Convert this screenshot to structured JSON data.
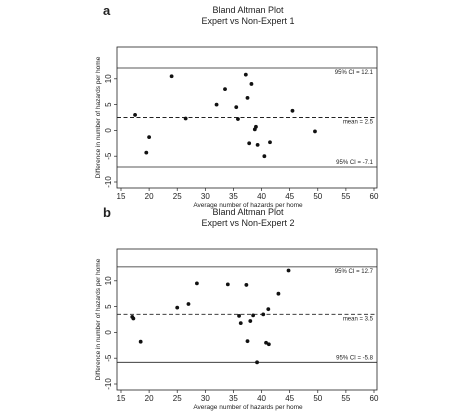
{
  "chart_data": [
    {
      "type": "scatter",
      "panel": "a",
      "title": "Bland Altman Plot",
      "subtitle": "Expert vs Non-Expert 1",
      "xlabel": "Average number of hazards per home",
      "ylabel": "Difference in number of hazards per home",
      "xlim": [
        15,
        60
      ],
      "ylim": [
        -10,
        15
      ],
      "xticks": [
        "15",
        "20",
        "25",
        "30",
        "35",
        "40",
        "45",
        "50",
        "55",
        "60"
      ],
      "yticks": [
        "-10",
        "-5",
        "0",
        "5",
        "10"
      ],
      "grid": false,
      "mean": 2.5,
      "upper_ci": 12.1,
      "lower_ci": -7.1,
      "mean_label": "mean = 2.5",
      "upper_label": "95% CI = 12.1",
      "lower_label": "95% CI = -7.1",
      "points": [
        {
          "x": 17.5,
          "y": 3.0
        },
        {
          "x": 19.5,
          "y": -4.3
        },
        {
          "x": 20.0,
          "y": -1.3
        },
        {
          "x": 24.0,
          "y": 10.5
        },
        {
          "x": 26.5,
          "y": 2.3
        },
        {
          "x": 32.0,
          "y": 5.0
        },
        {
          "x": 33.5,
          "y": 8.0
        },
        {
          "x": 35.5,
          "y": 4.5
        },
        {
          "x": 35.8,
          "y": 2.2
        },
        {
          "x": 37.2,
          "y": 10.8
        },
        {
          "x": 37.5,
          "y": 6.3
        },
        {
          "x": 38.2,
          "y": 9.0
        },
        {
          "x": 37.8,
          "y": -2.5
        },
        {
          "x": 38.8,
          "y": 0.2
        },
        {
          "x": 39.3,
          "y": -2.8
        },
        {
          "x": 39.0,
          "y": 0.7
        },
        {
          "x": 40.5,
          "y": -5.0
        },
        {
          "x": 41.5,
          "y": -2.3
        },
        {
          "x": 45.5,
          "y": 3.8
        },
        {
          "x": 49.5,
          "y": -0.2
        }
      ]
    },
    {
      "type": "scatter",
      "panel": "b",
      "title": "Bland Altman Plot",
      "subtitle": "Expert vs Non-Expert 2",
      "xlabel": "Average number of hazards per home",
      "ylabel": "Difference in number of hazards per home",
      "xlim": [
        15,
        60
      ],
      "ylim": [
        -10,
        15
      ],
      "xticks": [
        "15",
        "20",
        "25",
        "30",
        "35",
        "40",
        "45",
        "50",
        "55",
        "60"
      ],
      "yticks": [
        "-10",
        "-5",
        "0",
        "5",
        "10"
      ],
      "grid": false,
      "mean": 3.5,
      "upper_ci": 12.7,
      "lower_ci": -5.8,
      "mean_label": "mean = 3.5",
      "upper_label": "95% CI = 12.7",
      "lower_label": "95% CI = -5.8",
      "points": [
        {
          "x": 17.0,
          "y": 3.0
        },
        {
          "x": 17.2,
          "y": 2.7
        },
        {
          "x": 18.5,
          "y": -1.8
        },
        {
          "x": 25.0,
          "y": 4.8
        },
        {
          "x": 27.0,
          "y": 5.5
        },
        {
          "x": 28.5,
          "y": 9.5
        },
        {
          "x": 34.0,
          "y": 9.3
        },
        {
          "x": 36.0,
          "y": 3.2
        },
        {
          "x": 36.3,
          "y": 1.8
        },
        {
          "x": 37.3,
          "y": 9.2
        },
        {
          "x": 37.5,
          "y": -1.7
        },
        {
          "x": 38.0,
          "y": 2.2
        },
        {
          "x": 38.5,
          "y": 3.3
        },
        {
          "x": 39.2,
          "y": -5.8
        },
        {
          "x": 40.3,
          "y": 3.5
        },
        {
          "x": 40.8,
          "y": -2.0
        },
        {
          "x": 41.3,
          "y": -2.3
        },
        {
          "x": 41.2,
          "y": 4.5
        },
        {
          "x": 43.0,
          "y": 7.5
        },
        {
          "x": 44.8,
          "y": 12.0
        }
      ]
    }
  ]
}
